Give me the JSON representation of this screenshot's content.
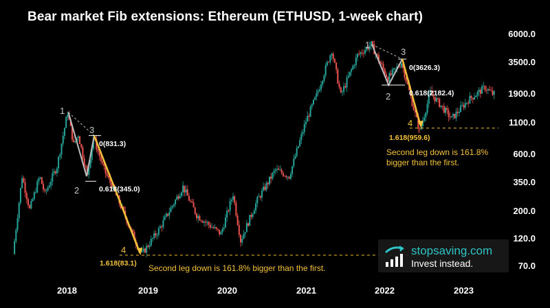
{
  "title": "Bear market Fib extensions: Ethereum (ETHUSD, 1-week chart)",
  "chart_data": {
    "type": "candlestick",
    "scale": "log",
    "ylim": [
      60,
      7000
    ],
    "y_ticks": [
      "6000.0",
      "3500.0",
      "1900.0",
      "1100.0",
      "600.0",
      "350.0",
      "200.0",
      "120.0",
      "70.0"
    ],
    "x_ticks": [
      "2018",
      "2019",
      "2020",
      "2021",
      "2022",
      "2023"
    ],
    "colors": {
      "up": "#26a69a",
      "down": "#ef5350",
      "annotation": "#f3c33b",
      "wave": "#bdbdbd"
    },
    "price_path": [
      [
        "2017-05-01",
        85
      ],
      [
        "2017-06-12",
        380
      ],
      [
        "2017-07-17",
        200
      ],
      [
        "2017-09-01",
        380
      ],
      [
        "2017-09-25",
        270
      ],
      [
        "2017-11-20",
        460
      ],
      [
        "2018-01-08",
        1300
      ],
      [
        "2018-02-05",
        700
      ],
      [
        "2018-02-26",
        850
      ],
      [
        "2018-04-09",
        380
      ],
      [
        "2018-05-07",
        800
      ],
      [
        "2018-06-25",
        430
      ],
      [
        "2018-08-13",
        280
      ],
      [
        "2018-09-17",
        200
      ],
      [
        "2018-11-26",
        100
      ],
      [
        "2018-12-17",
        85
      ],
      [
        "2019-03-04",
        135
      ],
      [
        "2019-06-24",
        310
      ],
      [
        "2019-08-26",
        180
      ],
      [
        "2019-12-16",
        125
      ],
      [
        "2020-02-10",
        270
      ],
      [
        "2020-03-16",
        110
      ],
      [
        "2020-06-01",
        240
      ],
      [
        "2020-08-24",
        430
      ],
      [
        "2020-10-26",
        380
      ],
      [
        "2021-01-11",
        1100
      ],
      [
        "2021-03-01",
        1800
      ],
      [
        "2021-05-10",
        4300
      ],
      [
        "2021-06-21",
        1800
      ],
      [
        "2021-09-06",
        3900
      ],
      [
        "2021-11-08",
        4800
      ],
      [
        "2022-01-24",
        2500
      ],
      [
        "2022-03-28",
        3400
      ],
      [
        "2022-06-20",
        900
      ],
      [
        "2022-08-08",
        1900
      ],
      [
        "2022-11-14",
        1150
      ],
      [
        "2023-01-30",
        1650
      ],
      [
        "2023-04-17",
        2100
      ],
      [
        "2023-05-22",
        1850
      ]
    ],
    "annotations": [
      {
        "text": "0(831.3)",
        "price": 831.3
      },
      {
        "text": "0.618(345.0)",
        "price": 345.0
      },
      {
        "text": "1.618(83.1)",
        "price": 83.1
      },
      {
        "text": "0(3626.3)",
        "price": 3626.3
      },
      {
        "text": "0.618(2182.4)",
        "price": 2182.4
      },
      {
        "text": "1.618(959.6)",
        "price": 959.6
      }
    ],
    "wave_labels": [
      "1",
      "2",
      "3",
      "4"
    ]
  },
  "notes": {
    "first": "Second leg down is 161.8% bigger than the first.",
    "second": "Second leg down is 161.8% bigger than the first."
  },
  "brand": {
    "name": "stopsaving.com",
    "tagline": "Invest instead."
  }
}
